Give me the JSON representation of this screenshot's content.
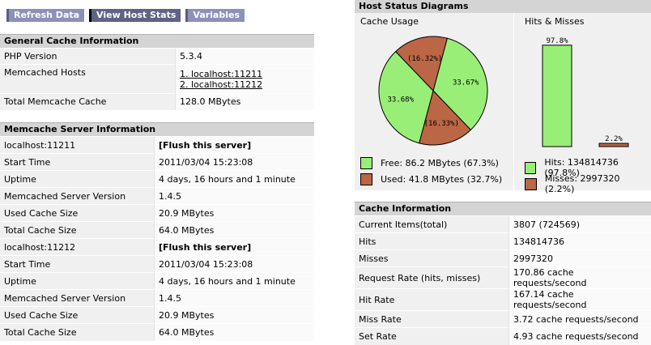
{
  "toolbar": {
    "buttons": [
      "Refresh Data",
      "View Host Stats",
      "Variables"
    ]
  },
  "general": {
    "title": "General Cache Information",
    "php_label": "PHP Version",
    "php_value": "5.3.4",
    "hosts_label": "Memcached Hosts",
    "hosts": [
      "1. localhost:11211",
      "2. localhost:11212"
    ],
    "total_label": "Total Memcache Cache",
    "total_value": "128.0 MBytes"
  },
  "server_info": {
    "title": "Memcache Server Information",
    "servers": [
      {
        "host": "localhost:11211",
        "flush": "[Flush this server]",
        "rows": [
          {
            "k": "Start Time",
            "v": "2011/03/04 15:23:08"
          },
          {
            "k": "Uptime",
            "v": "4 days, 16 hours and 1 minute"
          },
          {
            "k": "Memcached Server Version",
            "v": "1.4.5"
          },
          {
            "k": "Used Cache Size",
            "v": "20.9 MBytes"
          },
          {
            "k": "Total Cache Size",
            "v": "64.0 MBytes"
          }
        ]
      },
      {
        "host": "localhost:11212",
        "flush": "[Flush this server]",
        "rows": [
          {
            "k": "Start Time",
            "v": "2011/03/04 15:23:08"
          },
          {
            "k": "Uptime",
            "v": "4 days, 16 hours and 1 minute"
          },
          {
            "k": "Memcached Server Version",
            "v": "1.4.5"
          },
          {
            "k": "Used Cache Size",
            "v": "20.9 MBytes"
          },
          {
            "k": "Total Cache Size",
            "v": "64.0 MBytes"
          }
        ]
      }
    ]
  },
  "diagrams": {
    "title": "Host Status Diagrams",
    "usage_title": "Cache Usage",
    "hits_title": "Hits & Misses",
    "pie_labels": [
      "33.67%",
      "(16.33%)",
      "33.68%",
      "(16.32%)"
    ],
    "bar_labels": [
      "97.8%",
      "2.2%"
    ],
    "legend": {
      "free": "Free: 86.2 MBytes (67.3%)",
      "used": "Used: 41.8 MBytes (32.7%)",
      "hits": "Hits: 134814736 (97.8%)",
      "misses": "Misses: 2997320 (2.2%)"
    },
    "colors": {
      "free": "#99ee77",
      "used": "#bb6644"
    }
  },
  "chart_data": [
    {
      "type": "pie",
      "title": "Cache Usage",
      "categories": [
        "Free",
        "Used",
        "Free",
        "Used"
      ],
      "values": [
        33.67,
        16.33,
        33.68,
        16.32
      ]
    },
    {
      "type": "bar",
      "title": "Hits & Misses",
      "categories": [
        "Hits",
        "Misses"
      ],
      "values": [
        97.8,
        2.2
      ],
      "ylim": [
        0,
        100
      ]
    }
  ],
  "cache_info": {
    "title": "Cache Information",
    "rows": [
      {
        "k": "Current Items(total)",
        "v": "3807 (724569)"
      },
      {
        "k": "Hits",
        "v": "134814736"
      },
      {
        "k": "Misses",
        "v": "2997320"
      },
      {
        "k": "Request Rate (hits, misses)",
        "v": "170.86 cache requests/second"
      },
      {
        "k": "Hit Rate",
        "v": "167.14 cache requests/second"
      },
      {
        "k": "Miss Rate",
        "v": "3.72 cache requests/second"
      },
      {
        "k": "Set Rate",
        "v": "4.93 cache requests/second"
      }
    ]
  }
}
